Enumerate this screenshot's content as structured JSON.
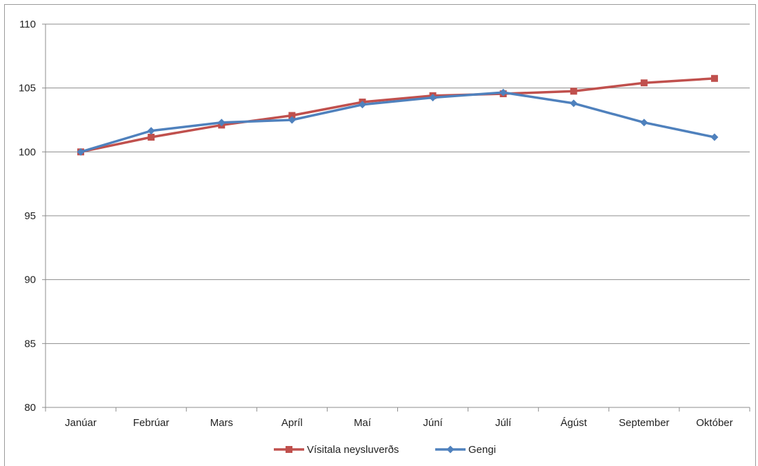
{
  "chart_data": {
    "type": "line",
    "categories": [
      "Janúar",
      "Febrúar",
      "Mars",
      "Apríl",
      "Maí",
      "Júní",
      "Júlí",
      "Ágúst",
      "September",
      "Október"
    ],
    "series": [
      {
        "name": "Vísitala neysluverðs",
        "color": "#c0504d",
        "marker": "square",
        "values": [
          100.0,
          101.15,
          102.1,
          102.85,
          103.9,
          104.4,
          104.55,
          104.75,
          105.4,
          105.75
        ]
      },
      {
        "name": "Gengi",
        "color": "#4f81bd",
        "marker": "diamond",
        "values": [
          100.0,
          101.65,
          102.3,
          102.5,
          103.7,
          104.25,
          104.65,
          103.8,
          102.3,
          101.15
        ]
      }
    ],
    "ylim": [
      80,
      110
    ],
    "yticks": [
      80,
      85,
      90,
      95,
      100,
      105,
      110
    ],
    "grid": true,
    "legend_position": "bottom"
  }
}
